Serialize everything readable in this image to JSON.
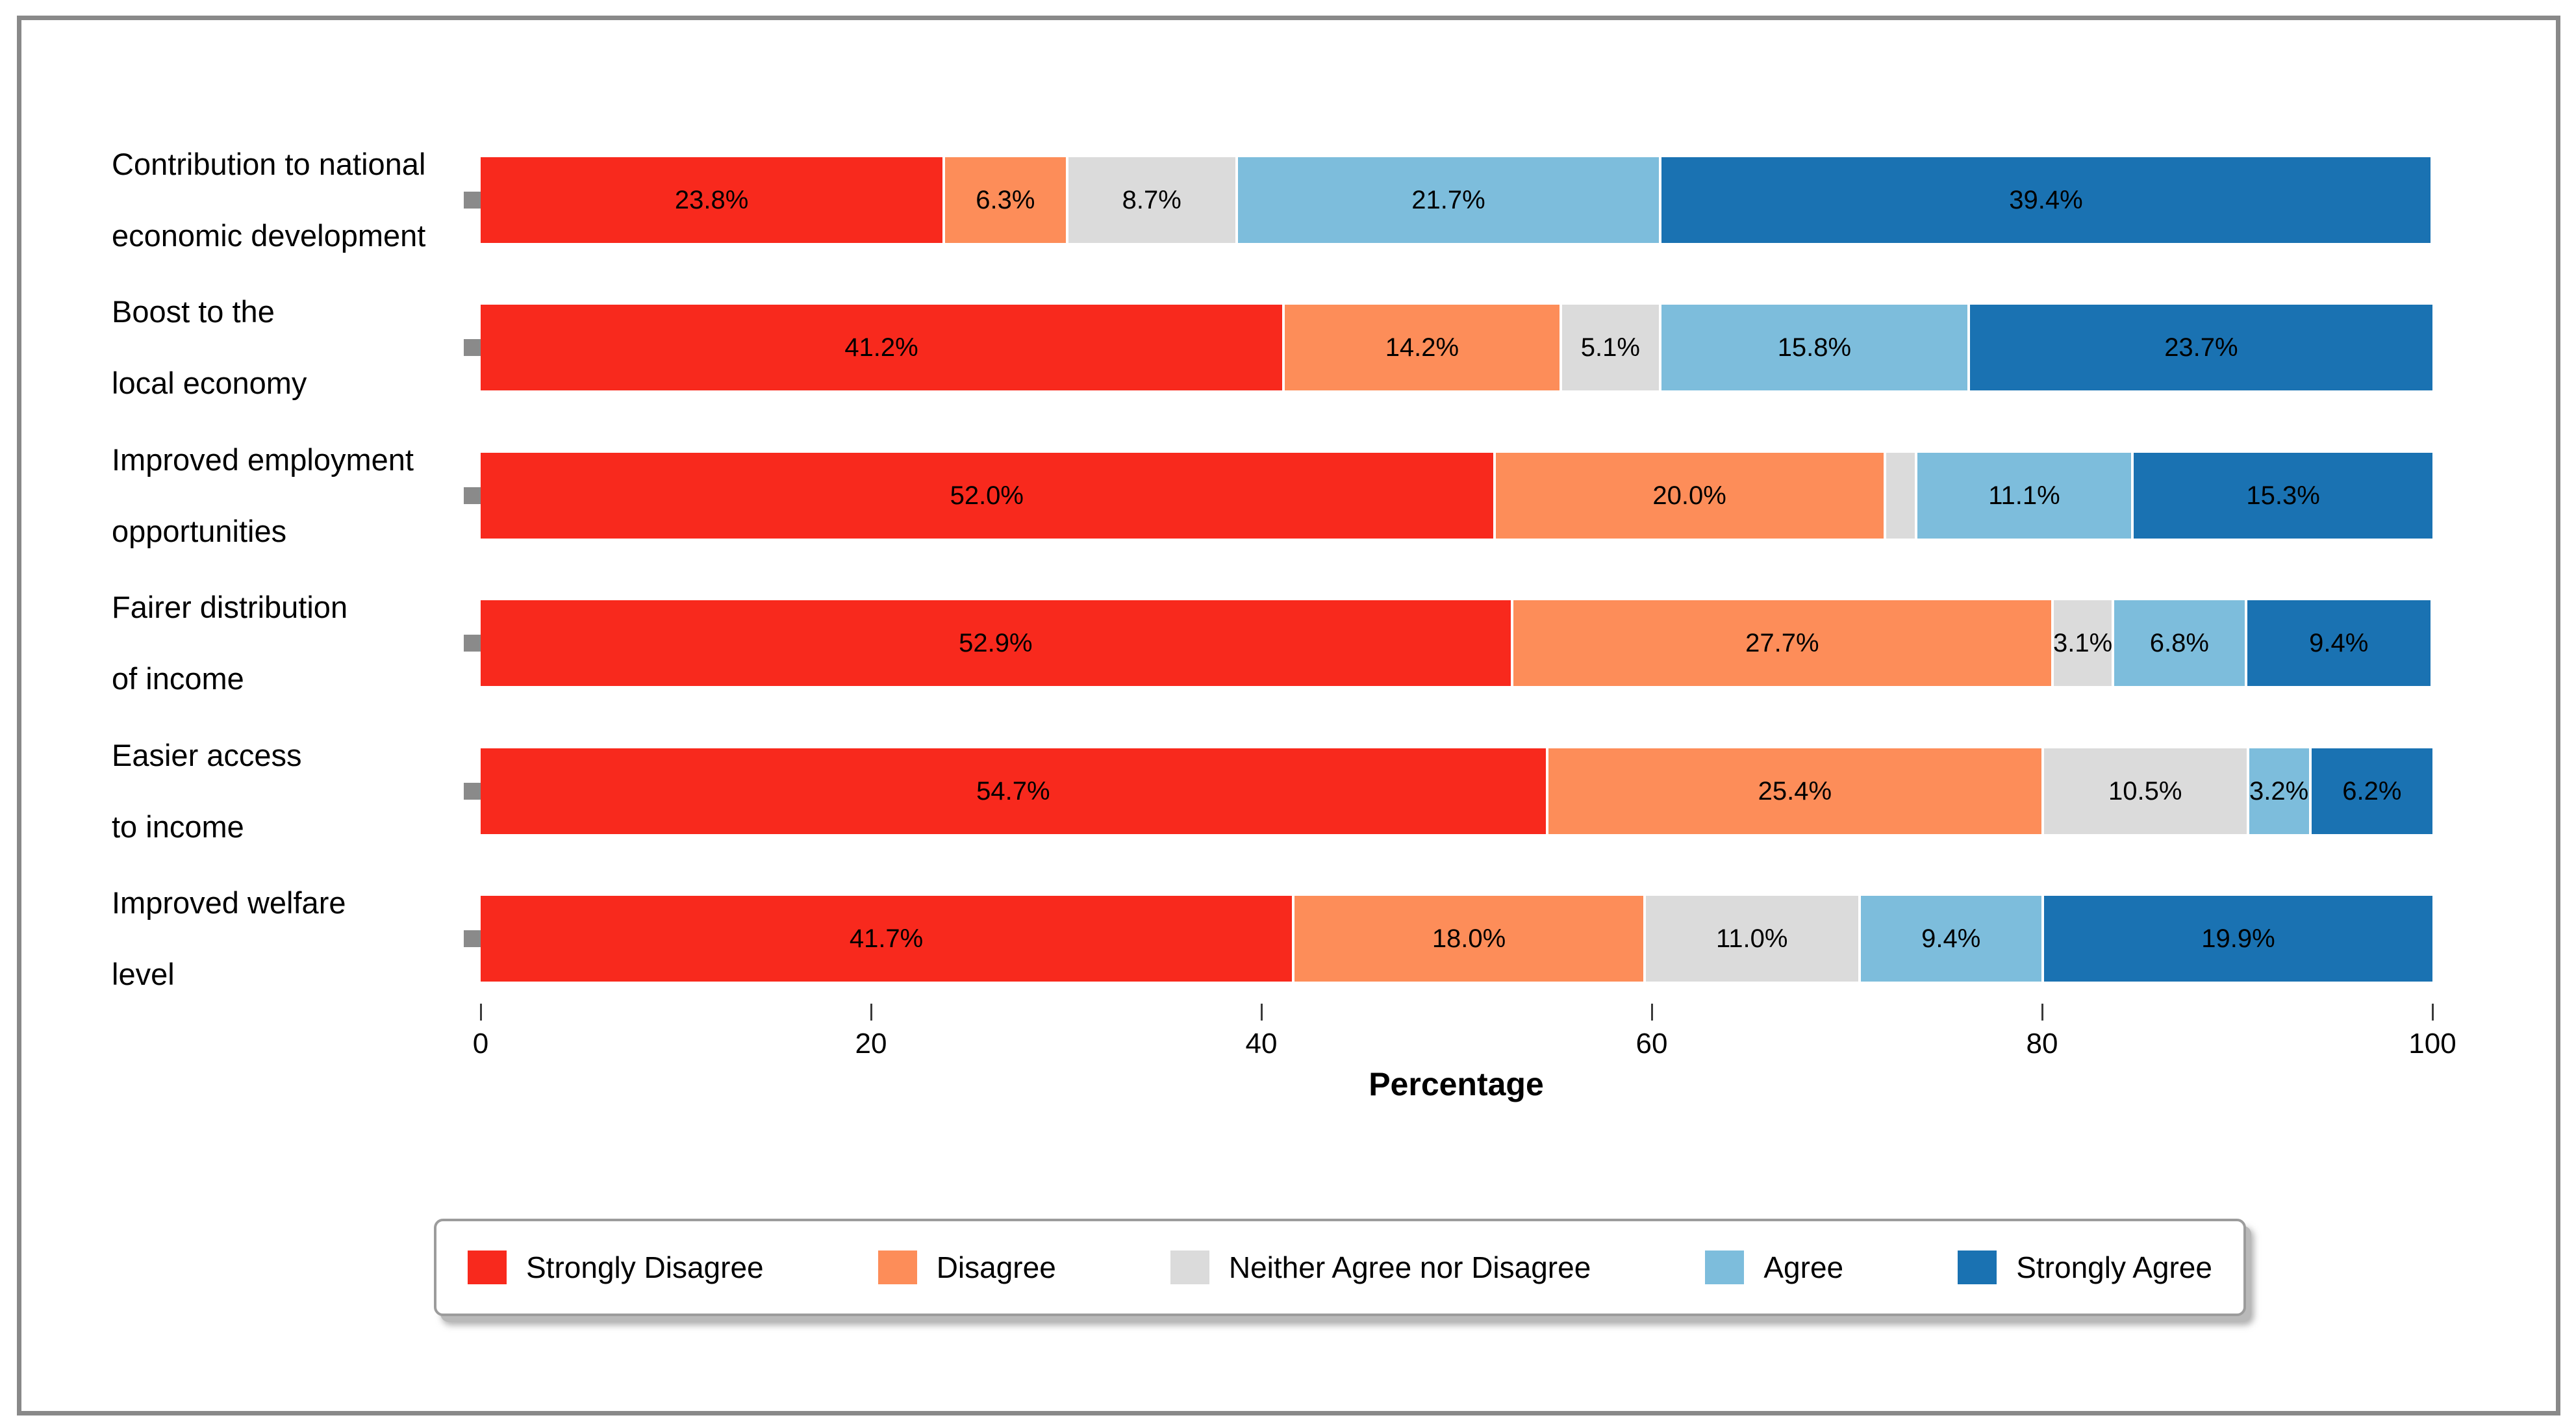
{
  "chart_data": {
    "type": "bar",
    "orientation": "horizontal",
    "stacked": true,
    "xlabel": "Percentage",
    "xlim": [
      0,
      100
    ],
    "xticks": [
      "0",
      "20",
      "40",
      "60",
      "80",
      "100"
    ],
    "grid": false,
    "legend_position": "bottom",
    "categories": [
      "Contribution to national economic development",
      "Boost to the local economy",
      "Improved employment opportunities",
      "Fairer distribution of income",
      "Easier access to income",
      "Improved welfare level"
    ],
    "category_label_lines": [
      [
        "Contribution to national",
        "economic development"
      ],
      [
        "Boost to the",
        "local economy"
      ],
      [
        "Improved employment",
        "opportunities"
      ],
      [
        "Fairer distribution",
        "of income"
      ],
      [
        "Easier access",
        "to income"
      ],
      [
        "Improved welfare",
        "level"
      ]
    ],
    "series": [
      {
        "name": "Strongly Disagree",
        "color": "#f8291d",
        "values": [
          23.8,
          41.2,
          52.0,
          52.9,
          54.7,
          41.7
        ]
      },
      {
        "name": "Disagree",
        "color": "#fd8d59",
        "values": [
          6.3,
          14.2,
          20.0,
          27.7,
          25.4,
          18.0
        ]
      },
      {
        "name": "Neither Agree nor Disagree",
        "color": "#dbdbdb",
        "values": [
          8.7,
          5.1,
          1.6,
          3.1,
          10.5,
          11.0
        ]
      },
      {
        "name": "Agree",
        "color": "#7dbddc",
        "values": [
          21.7,
          15.8,
          11.1,
          6.8,
          3.2,
          9.4
        ]
      },
      {
        "name": "Strongly Agree",
        "color": "#1a72b2",
        "values": [
          39.4,
          23.7,
          15.3,
          9.4,
          6.2,
          19.9
        ]
      }
    ],
    "segment_labels": [
      [
        "23.8%",
        "6.3%",
        "8.7%",
        "21.7%",
        "39.4%"
      ],
      [
        "41.2%",
        "14.2%",
        "5.1%",
        "15.8%",
        "23.7%"
      ],
      [
        "52.0%",
        "20.0%",
        "",
        "11.1%",
        "15.3%"
      ],
      [
        "52.9%",
        "27.7%",
        "3.1%",
        "6.8%",
        "9.4%"
      ],
      [
        "54.7%",
        "25.4%",
        "10.5%",
        "3.2%",
        "6.2%"
      ],
      [
        "41.7%",
        "18.0%",
        "11.0%",
        "9.4%",
        "19.9%"
      ]
    ]
  },
  "style_colors": {
    "frame_border": "#898989",
    "y_tick_marker": "#8a8a8a",
    "x_tick_line": "#3a3a3a",
    "legend_border": "#9c9c9c"
  }
}
